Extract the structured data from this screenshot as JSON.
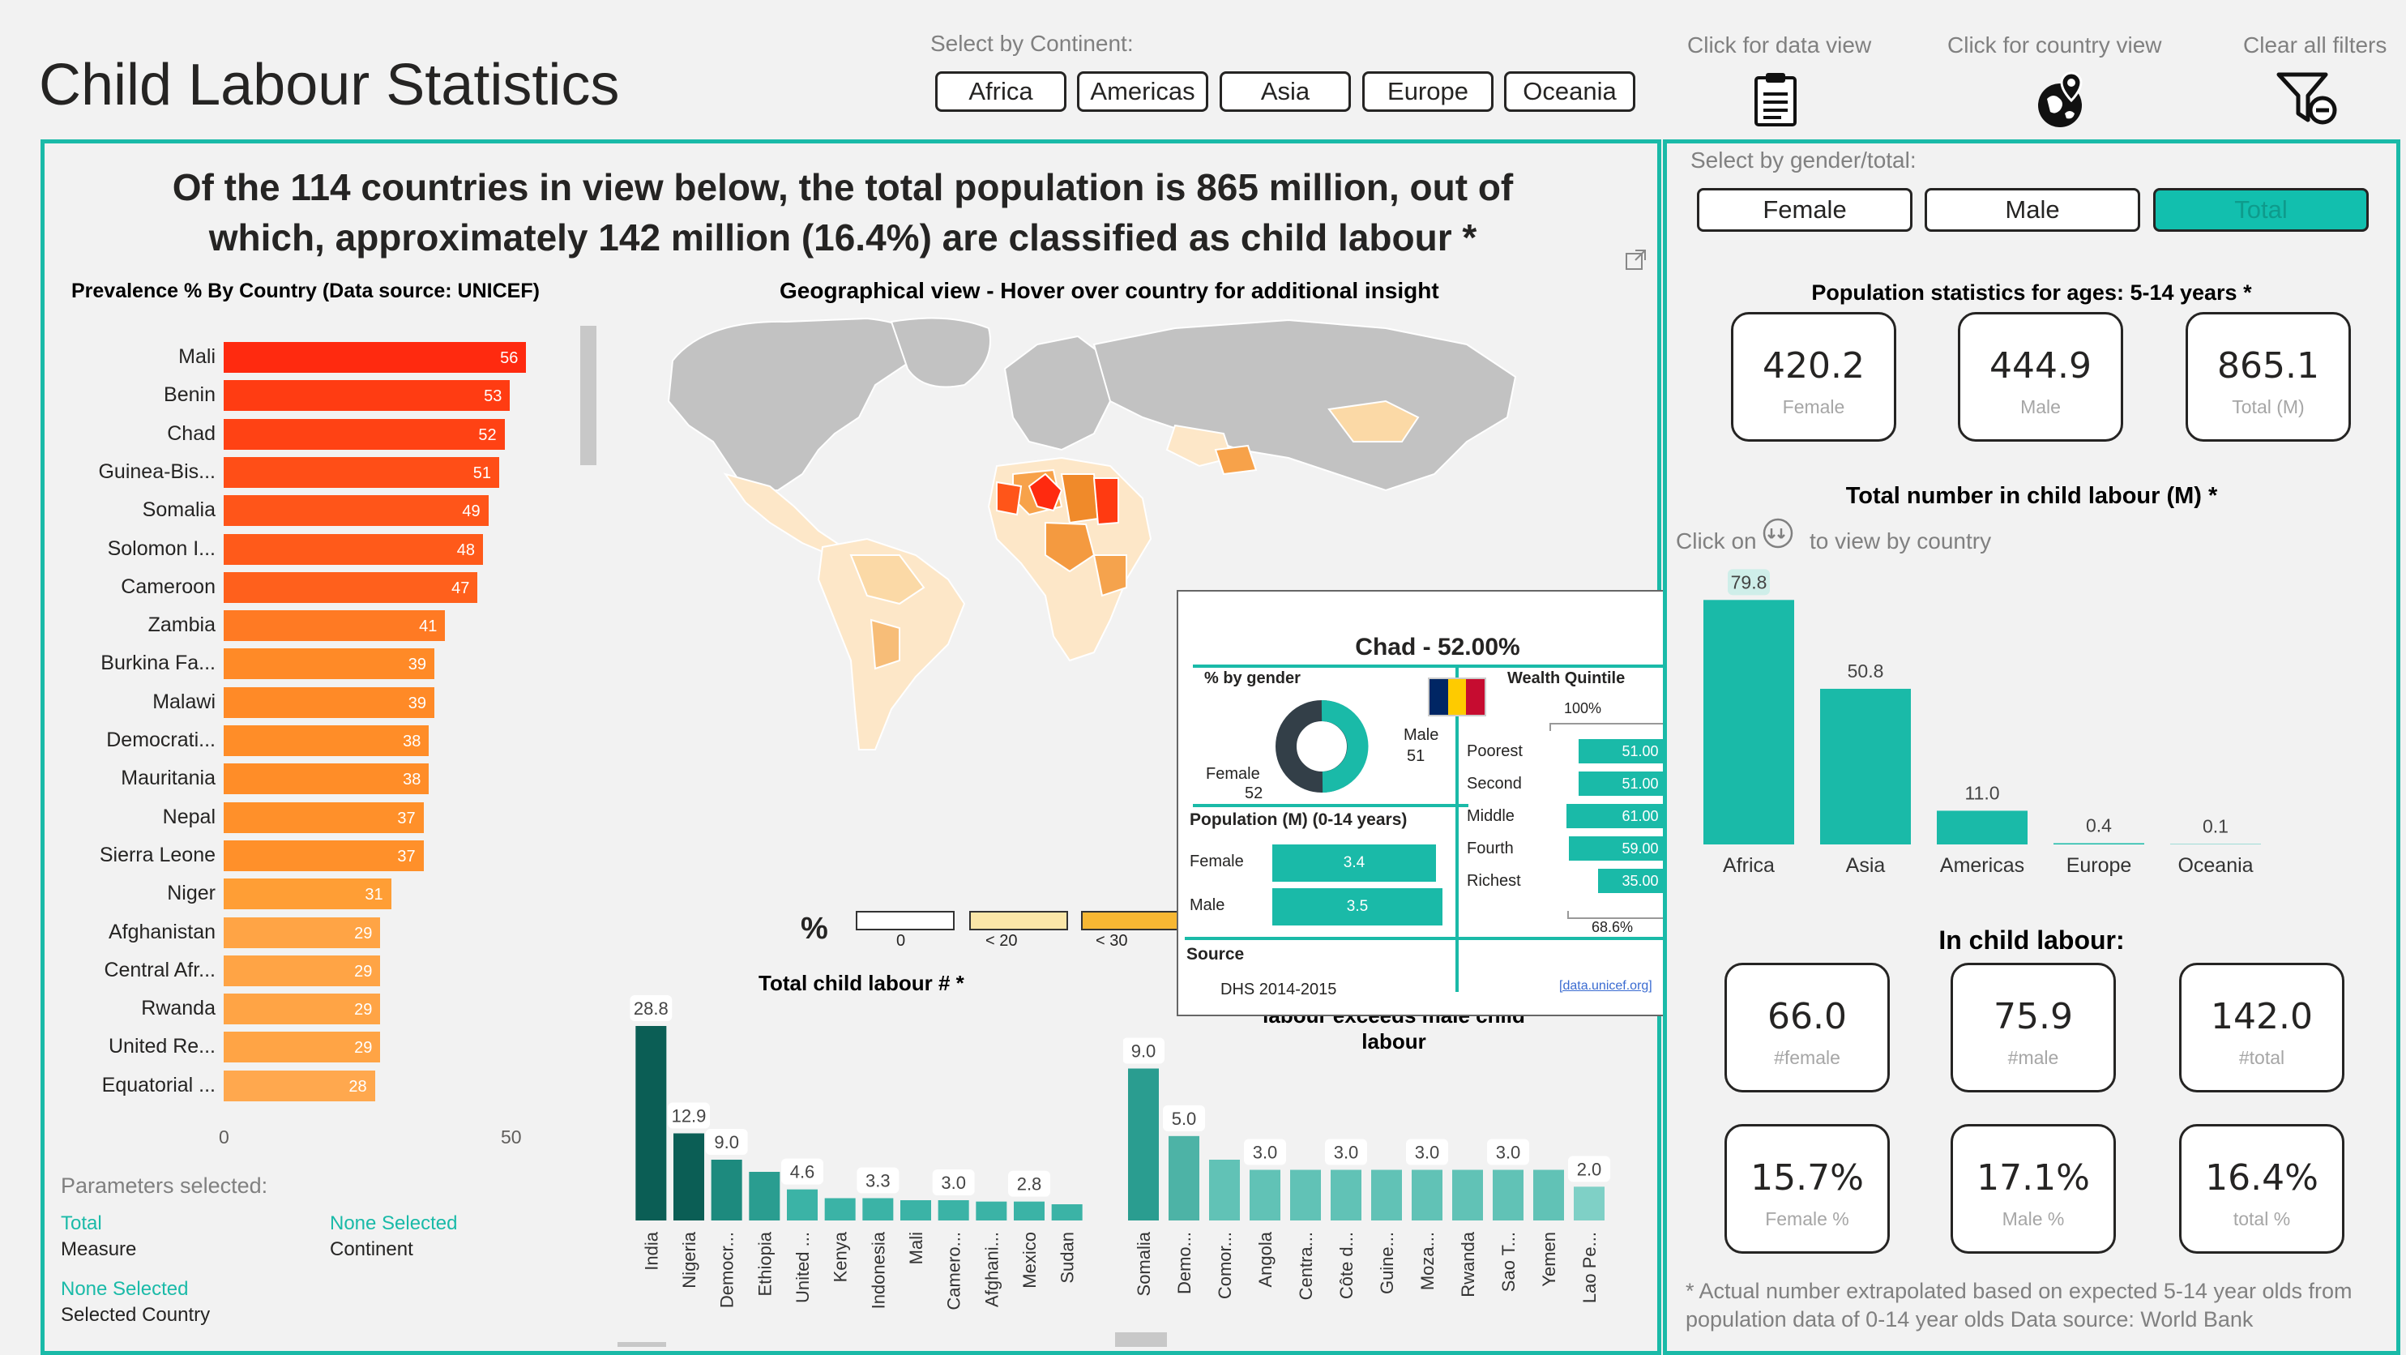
{
  "header": {
    "title": "Child Labour Statistics",
    "continent_label": "Select by Continent:",
    "continents": [
      "Africa",
      "Americas",
      "Asia",
      "Europe",
      "Oceania"
    ],
    "data_view_label": "Click for data view",
    "country_view_label": "Click for country view",
    "clear_filters_label": "Clear all filters"
  },
  "headline": "Of the 114 countries in view below, the total population is 865 million, out of which, approximately 142 million (16.4%) are classified as child labour *",
  "prevalence": {
    "title": "Prevalence % By Country (Data source: UNICEF)",
    "axis_ticks": [
      "0",
      "50"
    ],
    "colors": [
      "#ff2a0f",
      "#ff3c12",
      "#ff4214",
      "#ff4e17",
      "#ff5519",
      "#ff5a1a",
      "#ff601c",
      "#ff7a23",
      "#ff8a27",
      "#ff8a27",
      "#ff8d28",
      "#ff8d28",
      "#ff902a",
      "#ff902a",
      "#ff9e35",
      "#ffa445",
      "#ffa445",
      "#ffa445",
      "#ffa445",
      "#ffa84e"
    ]
  },
  "map": {
    "title": "Geographical view - Hover over country for additional insight",
    "legend_symbol": "%",
    "legend": [
      "0",
      "< 20",
      "< 30"
    ]
  },
  "total_labour": {
    "title": "Total child labour # *"
  },
  "exceed": {
    "title_line1": "labour exceeds male child",
    "title_line2": "labour"
  },
  "params": {
    "header": "Parameters selected:",
    "measure_value": "Total",
    "measure_label": "Measure",
    "continent_value": "None Selected",
    "continent_label": "Continent",
    "country_value": "None Selected",
    "country_label": "Selected Country"
  },
  "right": {
    "gender_label": "Select by gender/total:",
    "gender_buttons": [
      "Female",
      "Male",
      "Total"
    ],
    "pop_title": "Population statistics for ages: 5-14 years *",
    "pop_cards": [
      {
        "value": "420.2",
        "label": "Female"
      },
      {
        "value": "444.9",
        "label": "Male"
      },
      {
        "value": "865.1",
        "label": "Total (M)"
      }
    ],
    "labour_title": "Total number in child labour (M) *",
    "click_on": "Click on",
    "click_suffix": "to view by country",
    "in_labour_title": "In child labour:",
    "labour_cards": [
      {
        "value": "66.0",
        "label": "#female"
      },
      {
        "value": "75.9",
        "label": "#male"
      },
      {
        "value": "142.0",
        "label": "#total"
      }
    ],
    "pct_cards": [
      {
        "value": "15.7%",
        "label": "Female %"
      },
      {
        "value": "17.1%",
        "label": "Male %"
      },
      {
        "value": "16.4%",
        "label": "total %"
      }
    ],
    "footnote": "* Actual number extrapolated based on expected 5-14 year olds from population data of 0-14 year olds Data source: World Bank"
  },
  "tooltip": {
    "title": "Chad - 52.00%",
    "gender_title": "% by gender",
    "male_label": "Male",
    "male_value": "51",
    "female_label": "Female",
    "female_value": "52",
    "wealth_title": "Wealth Quintile",
    "wealth_top": "100%",
    "wealth_bottom": "68.6%",
    "wealth": [
      {
        "label": "Poorest",
        "value": "51.00",
        "pct": 0.51
      },
      {
        "label": "Second",
        "value": "51.00",
        "pct": 0.51
      },
      {
        "label": "Middle",
        "value": "61.00",
        "pct": 0.61
      },
      {
        "label": "Fourth",
        "value": "59.00",
        "pct": 0.59
      },
      {
        "label": "Richest",
        "value": "35.00",
        "pct": 0.35
      }
    ],
    "pop_title": "Population (M) (0-14 years)",
    "pop": [
      {
        "label": "Female",
        "value": "3.4"
      },
      {
        "label": "Male",
        "value": "3.5"
      }
    ],
    "source_label": "Source",
    "source_value": "DHS 2014-2015",
    "source_link": "[data.unicef.org]"
  },
  "chart_data": [
    {
      "type": "bar",
      "title": "Prevalence % By Country (Data source: UNICEF)",
      "orientation": "horizontal",
      "categories": [
        "Mali",
        "Benin",
        "Chad",
        "Guinea-Bis...",
        "Somalia",
        "Solomon I...",
        "Cameroon",
        "Zambia",
        "Burkina Fa...",
        "Malawi",
        "Democrati...",
        "Mauritania",
        "Nepal",
        "Sierra Leone",
        "Niger",
        "Afghanistan",
        "Central Afr...",
        "Rwanda",
        "United Re...",
        "Equatorial ..."
      ],
      "values": [
        56,
        53,
        52,
        51,
        49,
        48,
        47,
        41,
        39,
        39,
        38,
        38,
        37,
        37,
        31,
        29,
        29,
        29,
        29,
        28
      ],
      "xlim": [
        0,
        60
      ]
    },
    {
      "type": "bar",
      "title": "Total child labour # *",
      "categories": [
        "India",
        "Nigeria",
        "Democr...",
        "Ethiopia",
        "United ...",
        "Kenya",
        "Indonesia",
        "Mali",
        "Camero...",
        "Afghani...",
        "Mexico",
        "Sudan"
      ],
      "values": [
        28.8,
        12.9,
        9.0,
        7.2,
        4.6,
        3.3,
        3.3,
        3.0,
        3.0,
        2.8,
        2.8,
        2.4
      ],
      "data_labels": [
        "28.8",
        "12.9",
        "9.0",
        "",
        "4.6",
        "",
        "3.3",
        "",
        "3.0",
        "",
        "2.8",
        ""
      ],
      "colors": [
        "#0b5e55",
        "#0b5e55",
        "#1d8a7e",
        "#2a9d90",
        "#3bb3a6",
        "#3bb3a6",
        "#3bb3a6",
        "#3bb3a6",
        "#3bb3a6",
        "#3bb3a6",
        "#3bb3a6",
        "#3bb3a6"
      ]
    },
    {
      "type": "bar",
      "title": "labour exceeds male child labour",
      "categories": [
        "Somalia",
        "Demo...",
        "Comor...",
        "Angola",
        "Centra...",
        "Côte d...",
        "Guine...",
        "Moza...",
        "Rwanda",
        "Sao T...",
        "Yemen",
        "Lao Pe..."
      ],
      "values": [
        9.0,
        5.0,
        3.6,
        3.0,
        3.0,
        3.0,
        3.0,
        3.0,
        3.0,
        3.0,
        3.0,
        2.0
      ],
      "data_labels": [
        "9.0",
        "5.0",
        "",
        "3.0",
        "",
        "3.0",
        "",
        "3.0",
        "",
        "3.0",
        "",
        "2.0"
      ],
      "colors": [
        "#2a9d90",
        "#4db3a6",
        "#61c2b6",
        "#61c2b6",
        "#61c2b6",
        "#61c2b6",
        "#61c2b6",
        "#61c2b6",
        "#61c2b6",
        "#61c2b6",
        "#61c2b6",
        "#7fd0c6"
      ]
    },
    {
      "type": "bar",
      "title": "Total number in child labour (M) *",
      "categories": [
        "Africa",
        "Asia",
        "Americas",
        "Europe",
        "Oceania"
      ],
      "values": [
        79.8,
        50.8,
        11.0,
        0.4,
        0.1
      ],
      "data_labels": [
        "79.8",
        "50.8",
        "11.0",
        "0.4",
        "0.1"
      ],
      "color": "#1abaa8"
    }
  ]
}
